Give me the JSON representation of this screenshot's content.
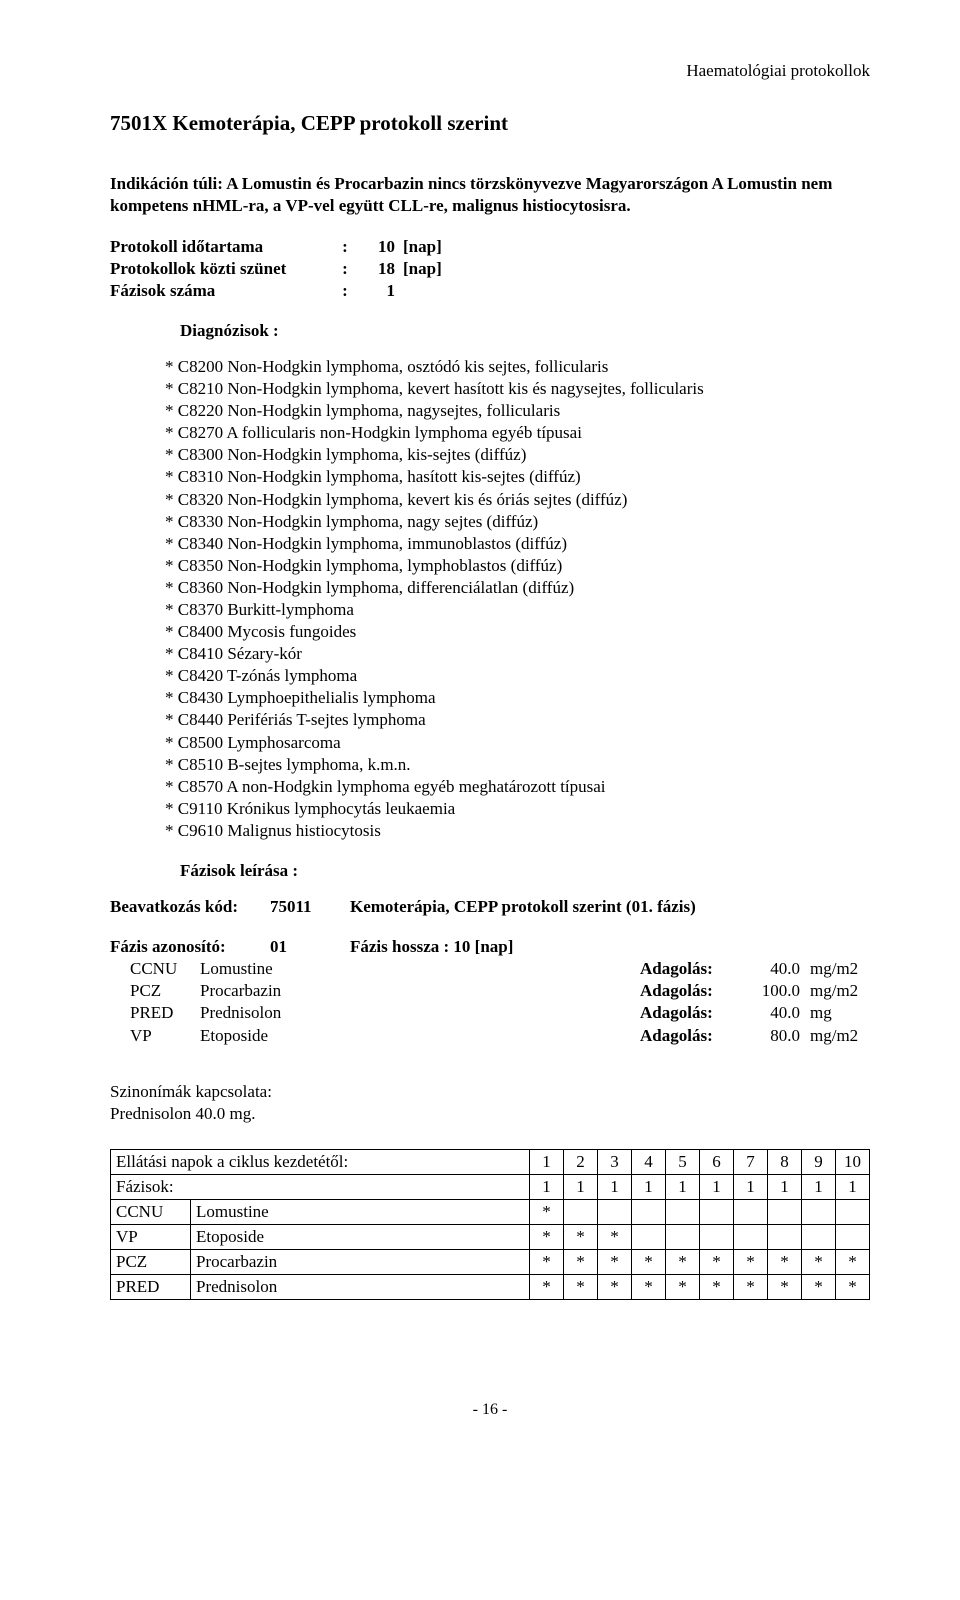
{
  "header": "Haematológiai protokollok",
  "title": "7501X Kemoterápia, CEPP protokoll szerint",
  "indication": "Indikáción túli: A Lomustin és Procarbazin nincs törzskönyvezve Magyarországon A Lomustin nem kompetens nHML-ra, a VP-vel együtt CLL-re, malignus histiocytosisra.",
  "params": {
    "duration_label": "Protokoll időtartama",
    "duration_value": "10",
    "duration_unit": "[nap]",
    "pause_label": "Protokollok közti szünet",
    "pause_value": "18",
    "pause_unit": "[nap]",
    "phases_label": "Fázisok száma",
    "phases_value": "1"
  },
  "diag_title": "Diagnózisok :",
  "diagnoses": [
    "* C8200 Non-Hodgkin lymphoma, osztódó kis sejtes, follicularis",
    "* C8210 Non-Hodgkin lymphoma, kevert hasított kis és nagysejtes, follicularis",
    "* C8220 Non-Hodgkin lymphoma, nagysejtes, follicularis",
    "* C8270 A follicularis non-Hodgkin lymphoma egyéb típusai",
    "* C8300 Non-Hodgkin lymphoma, kis-sejtes (diffúz)",
    "* C8310 Non-Hodgkin lymphoma, hasított kis-sejtes (diffúz)",
    "* C8320 Non-Hodgkin lymphoma, kevert kis és óriás sejtes (diffúz)",
    "* C8330 Non-Hodgkin lymphoma, nagy sejtes (diffúz)",
    "* C8340 Non-Hodgkin lymphoma, immunoblastos (diffúz)",
    "* C8350 Non-Hodgkin lymphoma, lymphoblastos (diffúz)",
    "* C8360 Non-Hodgkin lymphoma, differenciálatlan (diffúz)",
    "* C8370 Burkitt-lymphoma",
    "* C8400 Mycosis fungoides",
    "* C8410 Sézary-kór",
    "* C8420 T-zónás lymphoma",
    "* C8430 Lymphoepithelialis lymphoma",
    "* C8440 Perifériás T-sejtes lymphoma",
    "* C8500 Lymphosarcoma",
    "* C8510 B-sejtes lymphoma, k.m.n.",
    "* C8570 A non-Hodgkin lymphoma egyéb meghatározott típusai",
    "* C9110 Krónikus lymphocytás leukaemia",
    "* C9610 Malignus histiocytosis"
  ],
  "phases_desc_title": "Fázisok leírása :",
  "intervention": {
    "label": "Beavatkozás kód:",
    "code": "75011",
    "desc": "Kemoterápia, CEPP protokoll szerint (01. fázis)"
  },
  "phase": {
    "id_label": "Fázis azonosító:",
    "id_value": "01",
    "length": "Fázis hossza : 10 [nap]"
  },
  "meds": [
    {
      "code": "CCNU",
      "name": "Lomustine",
      "dose_lbl": "Adagolás:",
      "dose": "40.0",
      "unit": "mg/m2"
    },
    {
      "code": "PCZ",
      "name": "Procarbazin",
      "dose_lbl": "Adagolás:",
      "dose": "100.0",
      "unit": "mg/m2"
    },
    {
      "code": "PRED",
      "name": "Prednisolon",
      "dose_lbl": "Adagolás:",
      "dose": "40.0",
      "unit": "mg"
    },
    {
      "code": "VP",
      "name": "Etoposide",
      "dose_lbl": "Adagolás:",
      "dose": "80.0",
      "unit": "mg/m2"
    }
  ],
  "synonym_title": "Szinonímák kapcsolata:",
  "synonym_text": "Prednisolon  40.0 mg.",
  "schedule": {
    "header_label": "Ellátási napok a ciklus kezdetétől:",
    "days": [
      "1",
      "2",
      "3",
      "4",
      "5",
      "6",
      "7",
      "8",
      "9",
      "10"
    ],
    "rows": [
      {
        "a": "Fázisok:",
        "b": "",
        "cells": [
          "1",
          "1",
          "1",
          "1",
          "1",
          "1",
          "1",
          "1",
          "1",
          "1"
        ]
      },
      {
        "a": "CCNU",
        "b": "Lomustine",
        "cells": [
          "*",
          "",
          "",
          "",
          "",
          "",
          "",
          "",
          "",
          ""
        ]
      },
      {
        "a": "VP",
        "b": "Etoposide",
        "cells": [
          "*",
          "*",
          "*",
          "",
          "",
          "",
          "",
          "",
          "",
          ""
        ]
      },
      {
        "a": "PCZ",
        "b": "Procarbazin",
        "cells": [
          "*",
          "*",
          "*",
          "*",
          "*",
          "*",
          "*",
          "*",
          "*",
          "*"
        ]
      },
      {
        "a": "PRED",
        "b": "Prednisolon",
        "cells": [
          "*",
          "*",
          "*",
          "*",
          "*",
          "*",
          "*",
          "*",
          "*",
          "*"
        ]
      }
    ]
  },
  "page_number": "- 16 -"
}
